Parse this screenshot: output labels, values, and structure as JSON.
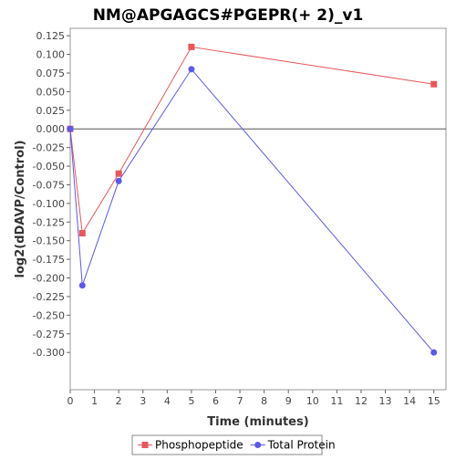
{
  "chart_data": {
    "type": "line",
    "title": "NM@APGAGCS#PGEPR(+ 2)_v1",
    "xlabel": "Time (minutes)",
    "ylabel": "log2(dDAVP/Control)",
    "xlim": [
      0,
      15.5
    ],
    "ylim": [
      -0.35,
      0.135
    ],
    "x_ticks": [
      0,
      1,
      2,
      3,
      4,
      5,
      6,
      7,
      8,
      9,
      10,
      11,
      12,
      13,
      14,
      15
    ],
    "y_ticks": [
      0.125,
      0.1,
      0.075,
      0.05,
      0.025,
      0.0,
      -0.025,
      -0.05,
      -0.075,
      -0.1,
      -0.125,
      -0.15,
      -0.175,
      -0.2,
      -0.225,
      -0.25,
      -0.275,
      -0.3
    ],
    "y_tick_labels": [
      "0.125",
      "0.100",
      "0.075",
      "0.050",
      "0.025",
      "0.000",
      "-0.025",
      "-0.050",
      "-0.075",
      "-0.100",
      "-0.125",
      "-0.150",
      "-0.175",
      "-0.200",
      "-0.225",
      "-0.250",
      "-0.275",
      "-0.300"
    ],
    "zero_line": true,
    "grid": false,
    "legend_position": "bottom",
    "series": [
      {
        "name": "Phosphopeptide",
        "color": "#e8585b",
        "marker": "square",
        "x": [
          0,
          0.5,
          2,
          5,
          15
        ],
        "y": [
          0.0,
          -0.14,
          -0.06,
          0.11,
          0.06
        ]
      },
      {
        "name": "Total Protein",
        "color": "#5a5ae6",
        "marker": "circle",
        "x": [
          0,
          0.5,
          2,
          5,
          15
        ],
        "y": [
          0.0,
          -0.21,
          -0.07,
          0.08,
          -0.3
        ]
      }
    ]
  }
}
